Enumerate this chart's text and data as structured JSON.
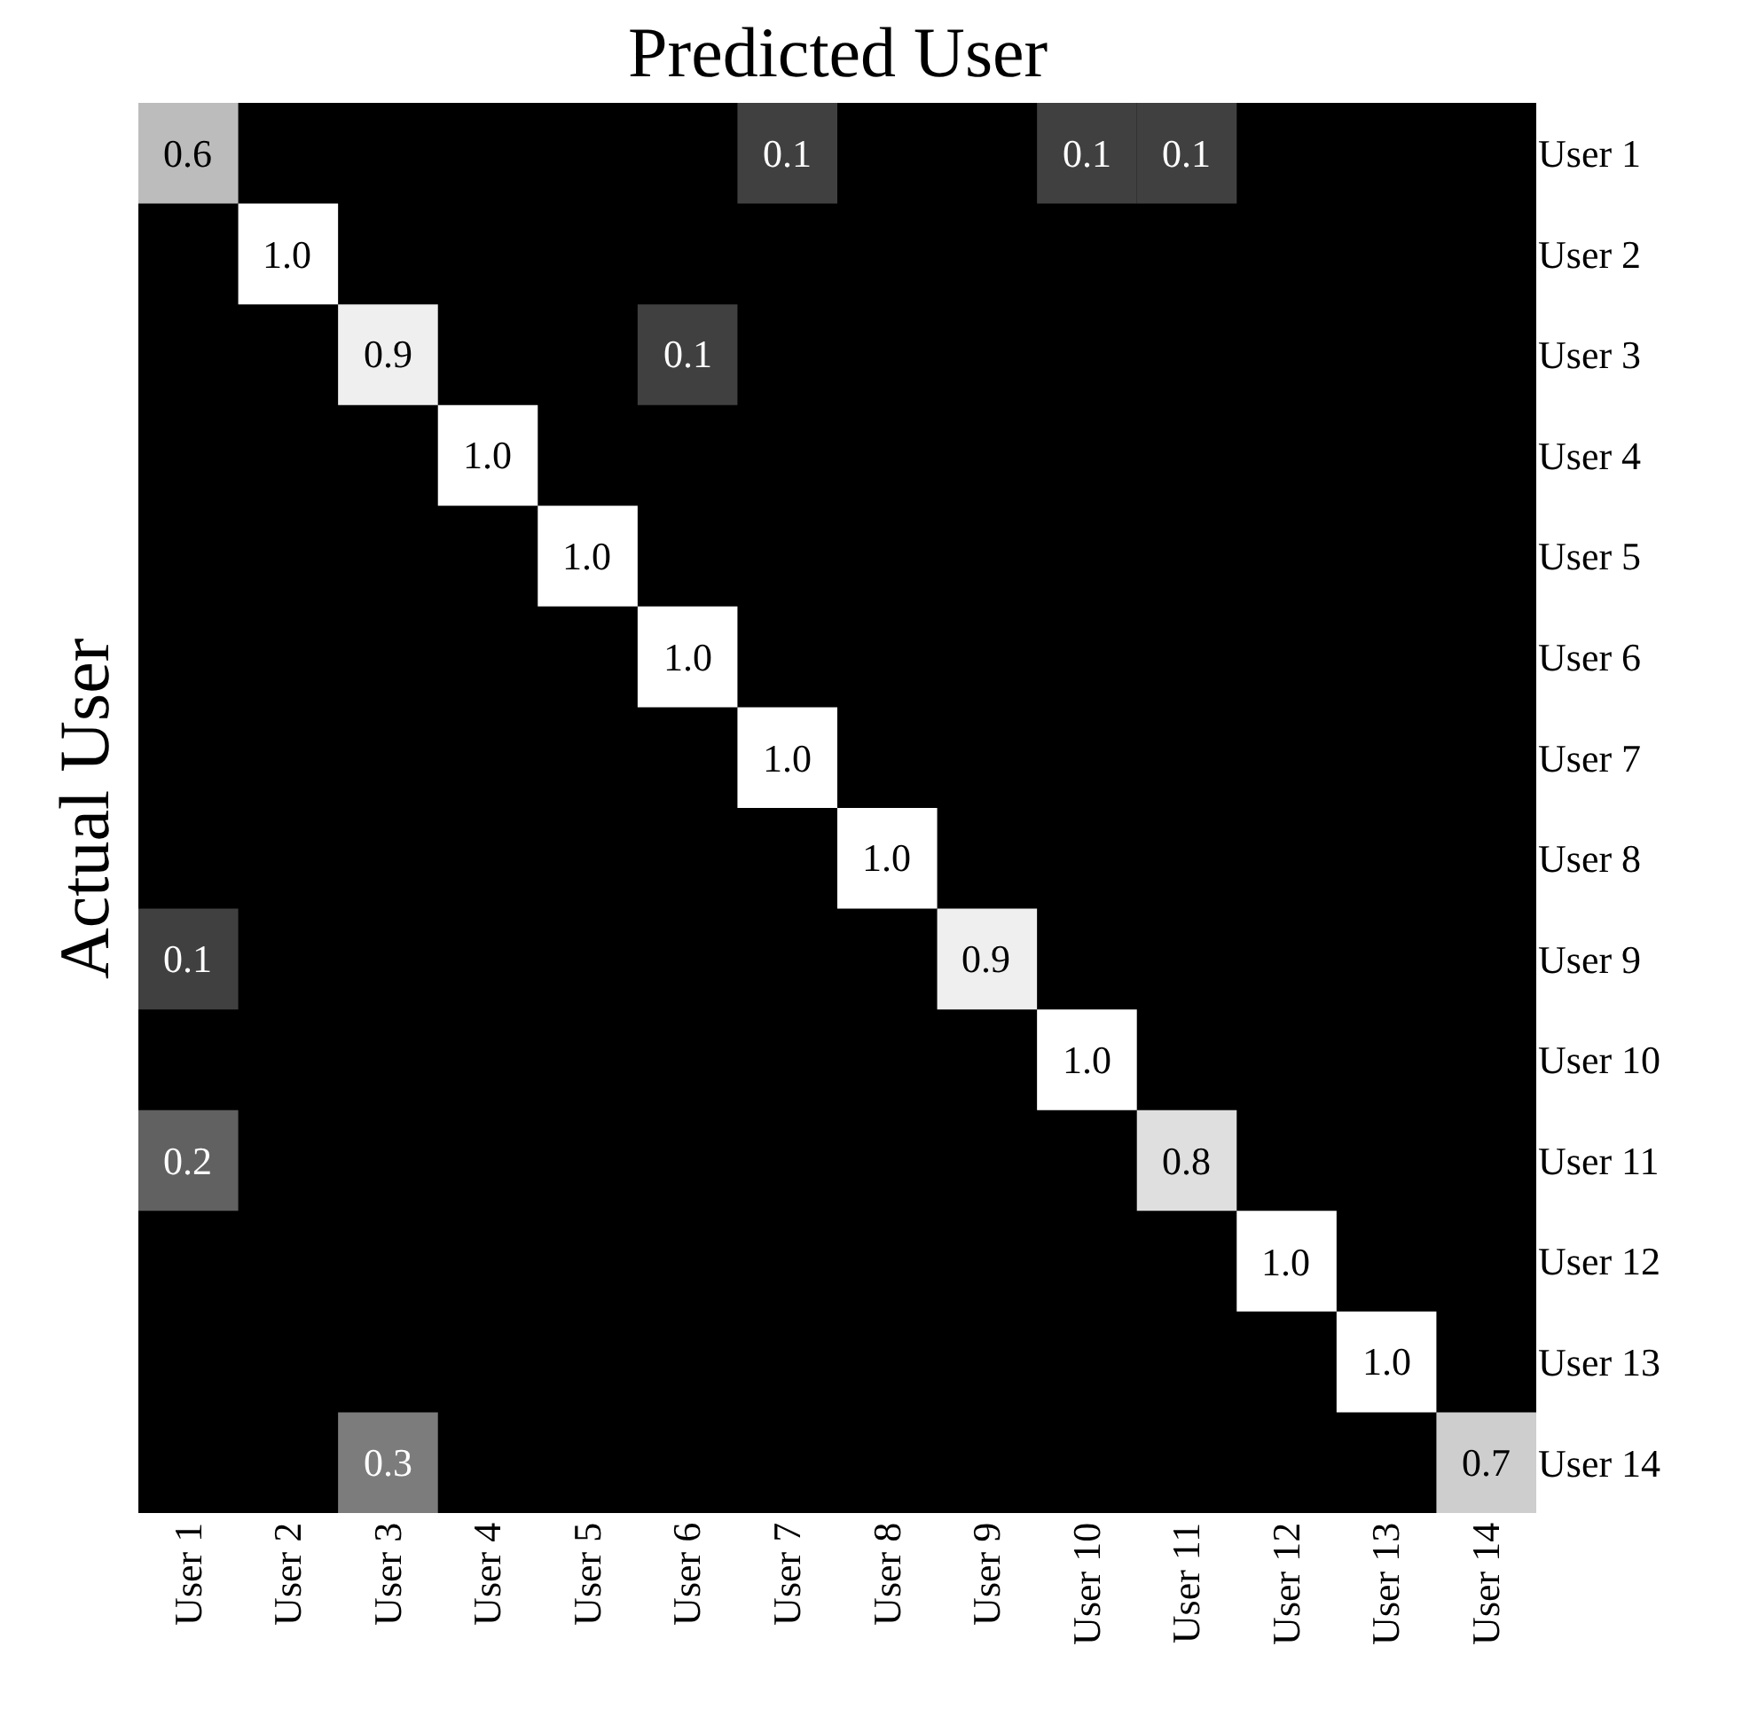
{
  "chart_data": {
    "type": "heatmap",
    "xlabel": "Predicted User",
    "ylabel": "Actual User",
    "categories": [
      "User 1",
      "User 2",
      "User 3",
      "User 4",
      "User 5",
      "User 6",
      "User 7",
      "User 8",
      "User 9",
      "User 10",
      "User 11",
      "User 12",
      "User 13",
      "User 14"
    ],
    "y_categories": [
      "User 1",
      "User 2",
      "User 3",
      "User 4",
      "User 5",
      "User 6",
      "User 7",
      "User 8",
      "User 9",
      "User 10",
      "User 11",
      "User 12",
      "User 13",
      "User 14"
    ],
    "cells": [
      [
        0.6,
        null,
        null,
        null,
        null,
        null,
        0.1,
        null,
        null,
        0.1,
        0.1,
        null,
        null,
        null
      ],
      [
        null,
        1.0,
        null,
        null,
        null,
        null,
        null,
        null,
        null,
        null,
        null,
        null,
        null,
        null
      ],
      [
        null,
        null,
        0.9,
        null,
        null,
        0.1,
        null,
        null,
        null,
        null,
        null,
        null,
        null,
        null
      ],
      [
        null,
        null,
        null,
        1.0,
        null,
        null,
        null,
        null,
        null,
        null,
        null,
        null,
        null,
        null
      ],
      [
        null,
        null,
        null,
        null,
        1.0,
        null,
        null,
        null,
        null,
        null,
        null,
        null,
        null,
        null
      ],
      [
        null,
        null,
        null,
        null,
        null,
        1.0,
        null,
        null,
        null,
        null,
        null,
        null,
        null,
        null
      ],
      [
        null,
        null,
        null,
        null,
        null,
        null,
        1.0,
        null,
        null,
        null,
        null,
        null,
        null,
        null
      ],
      [
        null,
        null,
        null,
        null,
        null,
        null,
        null,
        1.0,
        null,
        null,
        null,
        null,
        null,
        null
      ],
      [
        0.1,
        null,
        null,
        null,
        null,
        null,
        null,
        null,
        0.9,
        null,
        null,
        null,
        null,
        null
      ],
      [
        null,
        null,
        null,
        null,
        null,
        null,
        null,
        null,
        null,
        1.0,
        null,
        null,
        null,
        null
      ],
      [
        0.2,
        null,
        null,
        null,
        null,
        null,
        null,
        null,
        null,
        null,
        0.8,
        null,
        null,
        null
      ],
      [
        null,
        null,
        null,
        null,
        null,
        null,
        null,
        null,
        null,
        null,
        null,
        1.0,
        null,
        null
      ],
      [
        null,
        null,
        null,
        null,
        null,
        null,
        null,
        null,
        null,
        null,
        null,
        null,
        1.0,
        null
      ],
      [
        null,
        null,
        0.3,
        null,
        null,
        null,
        null,
        null,
        null,
        null,
        null,
        null,
        null,
        0.7
      ]
    ],
    "cell_labels": [
      [
        "0.6",
        null,
        null,
        null,
        null,
        null,
        "0.1",
        null,
        null,
        "0.1",
        "0.1",
        null,
        null,
        null
      ],
      [
        null,
        "1.0",
        null,
        null,
        null,
        null,
        null,
        null,
        null,
        null,
        null,
        null,
        null,
        null
      ],
      [
        null,
        null,
        "0.9",
        null,
        null,
        "0.1",
        null,
        null,
        null,
        null,
        null,
        null,
        null,
        null
      ],
      [
        null,
        null,
        null,
        "1.0",
        null,
        null,
        null,
        null,
        null,
        null,
        null,
        null,
        null,
        null
      ],
      [
        null,
        null,
        null,
        null,
        "1.0",
        null,
        null,
        null,
        null,
        null,
        null,
        null,
        null,
        null
      ],
      [
        null,
        null,
        null,
        null,
        null,
        "1.0",
        null,
        null,
        null,
        null,
        null,
        null,
        null,
        null
      ],
      [
        null,
        null,
        null,
        null,
        null,
        null,
        "1.0",
        null,
        null,
        null,
        null,
        null,
        null,
        null
      ],
      [
        null,
        null,
        null,
        null,
        null,
        null,
        null,
        "1.0",
        null,
        null,
        null,
        null,
        null,
        null
      ],
      [
        "0.1",
        null,
        null,
        null,
        null,
        null,
        null,
        null,
        "0.9",
        null,
        null,
        null,
        null,
        null
      ],
      [
        null,
        null,
        null,
        null,
        null,
        null,
        null,
        null,
        null,
        "1.0",
        null,
        null,
        null,
        null
      ],
      [
        "0.2",
        null,
        null,
        null,
        null,
        null,
        null,
        null,
        null,
        null,
        "0.8",
        null,
        null,
        null
      ],
      [
        null,
        null,
        null,
        null,
        null,
        null,
        null,
        null,
        null,
        null,
        null,
        "1.0",
        null,
        null
      ],
      [
        null,
        null,
        null,
        null,
        null,
        null,
        null,
        null,
        null,
        null,
        null,
        null,
        "1.0",
        null
      ],
      [
        null,
        null,
        "0.3",
        null,
        null,
        null,
        null,
        null,
        null,
        null,
        null,
        null,
        null,
        "0.7"
      ]
    ]
  }
}
